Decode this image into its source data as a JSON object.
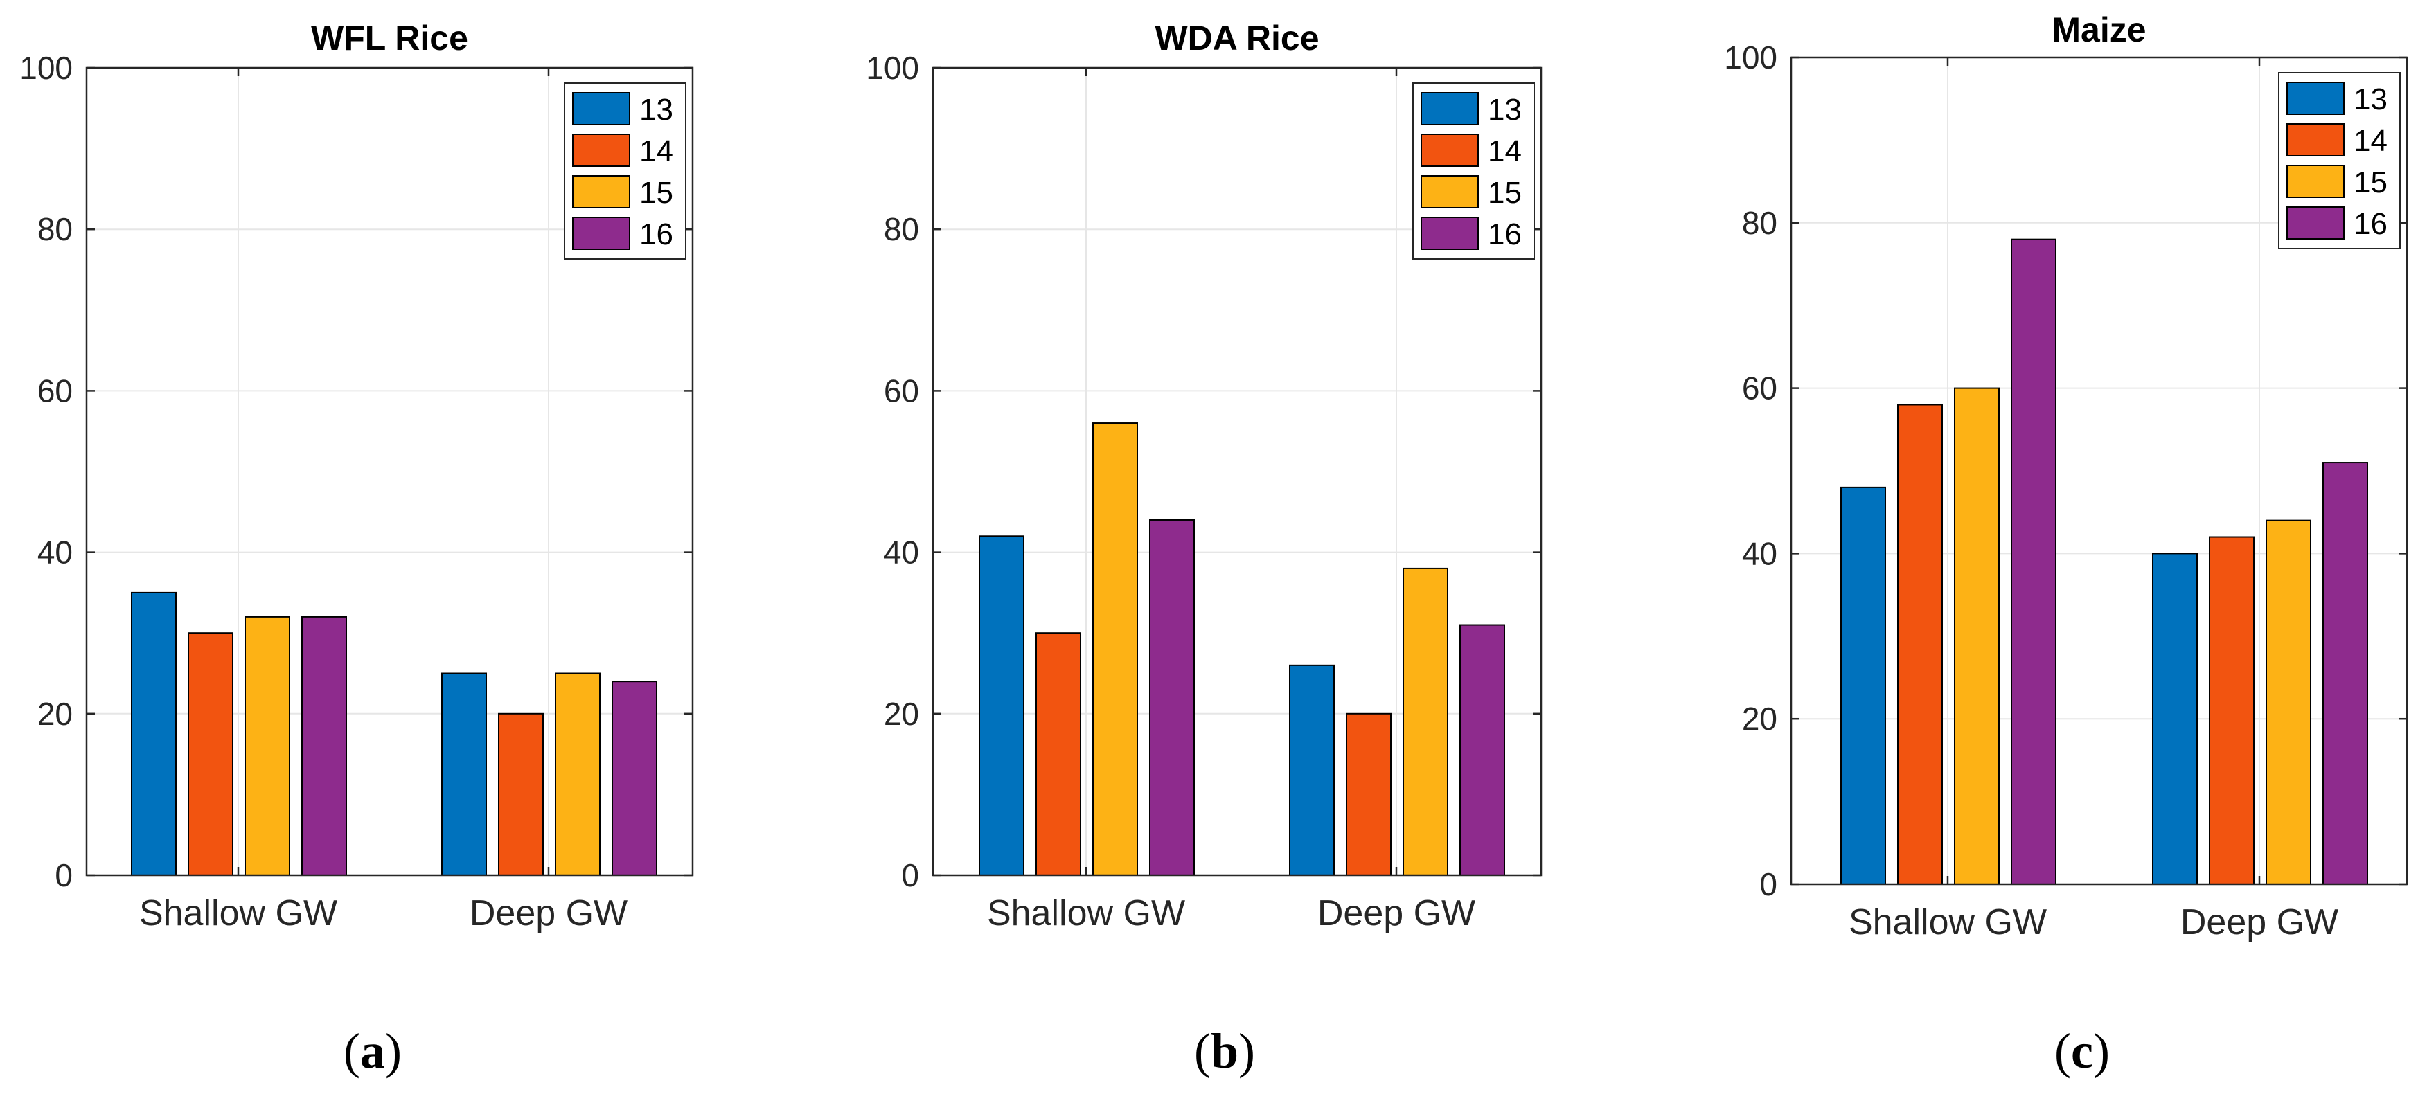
{
  "chart_data": [
    {
      "type": "bar",
      "title": "WFL Rice",
      "caption_letter": "a",
      "categories": [
        "Shallow GW",
        "Deep GW"
      ],
      "series": [
        {
          "name": "13",
          "values": [
            35,
            25
          ]
        },
        {
          "name": "14",
          "values": [
            30,
            20
          ]
        },
        {
          "name": "15",
          "values": [
            32,
            25
          ]
        },
        {
          "name": "16",
          "values": [
            32,
            24
          ]
        }
      ],
      "xlabel": "",
      "ylabel": "",
      "ylim": [
        0,
        100
      ],
      "yticks": [
        0,
        20,
        40,
        60,
        80,
        100
      ],
      "grid": true,
      "legend_position": "top-right"
    },
    {
      "type": "bar",
      "title": "WDA Rice",
      "caption_letter": "b",
      "categories": [
        "Shallow GW",
        "Deep GW"
      ],
      "series": [
        {
          "name": "13",
          "values": [
            42,
            26
          ]
        },
        {
          "name": "14",
          "values": [
            30,
            20
          ]
        },
        {
          "name": "15",
          "values": [
            56,
            38
          ]
        },
        {
          "name": "16",
          "values": [
            44,
            31
          ]
        }
      ],
      "xlabel": "",
      "ylabel": "",
      "ylim": [
        0,
        100
      ],
      "yticks": [
        0,
        20,
        40,
        60,
        80,
        100
      ],
      "grid": true,
      "legend_position": "top-right"
    },
    {
      "type": "bar",
      "title": "Maize",
      "caption_letter": "c",
      "categories": [
        "Shallow GW",
        "Deep GW"
      ],
      "series": [
        {
          "name": "13",
          "values": [
            48,
            40
          ]
        },
        {
          "name": "14",
          "values": [
            58,
            42
          ]
        },
        {
          "name": "15",
          "values": [
            60,
            44
          ]
        },
        {
          "name": "16",
          "values": [
            78,
            51
          ]
        }
      ],
      "xlabel": "",
      "ylabel": "",
      "ylim": [
        0,
        100
      ],
      "yticks": [
        0,
        20,
        40,
        60,
        80,
        100
      ],
      "grid": true,
      "legend_position": "top-right"
    }
  ],
  "colors": {
    "series": [
      "#0072BD",
      "#F25410",
      "#FDB215",
      "#8E2B8D"
    ],
    "axis": "#262626",
    "grid": "#e6e6e6"
  }
}
